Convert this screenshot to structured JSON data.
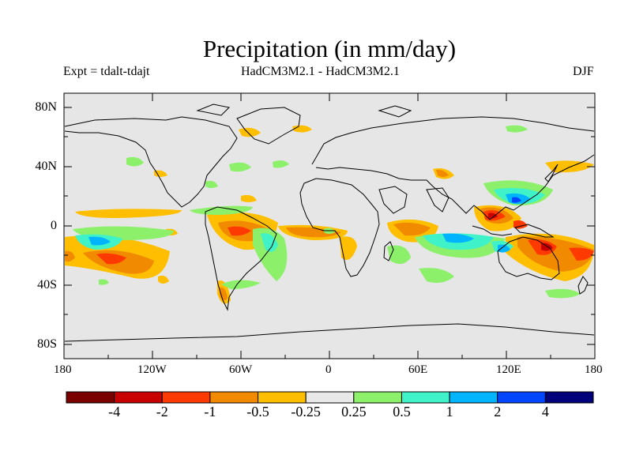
{
  "title": "Precipitation (in mm/day)",
  "experiment_label": "Expt = tdalt-tdajt",
  "model_label": "HadCM3M2.1 - HadCM3M2.1",
  "season_label": "DJF",
  "lat_labels": [
    "80N",
    "40N",
    "0",
    "40S",
    "80S"
  ],
  "lon_labels": [
    "180",
    "120W",
    "60W",
    "0",
    "60E",
    "120E",
    "180"
  ],
  "colorbar": {
    "colors": [
      "#7a0000",
      "#c80000",
      "#ff3a00",
      "#f28a00",
      "#ffbf00",
      "#e8e8e8",
      "#8cf06a",
      "#3ff2c8",
      "#00b4ff",
      "#0046ff",
      "#00007a"
    ],
    "labels": [
      "-4",
      "-2",
      "-1",
      "-0.5",
      "-0.25",
      "0.25",
      "0.5",
      "1",
      "2",
      "4"
    ]
  },
  "colors": {
    "ocean_bg": "#e6e6e6",
    "coast": "#000000"
  }
}
